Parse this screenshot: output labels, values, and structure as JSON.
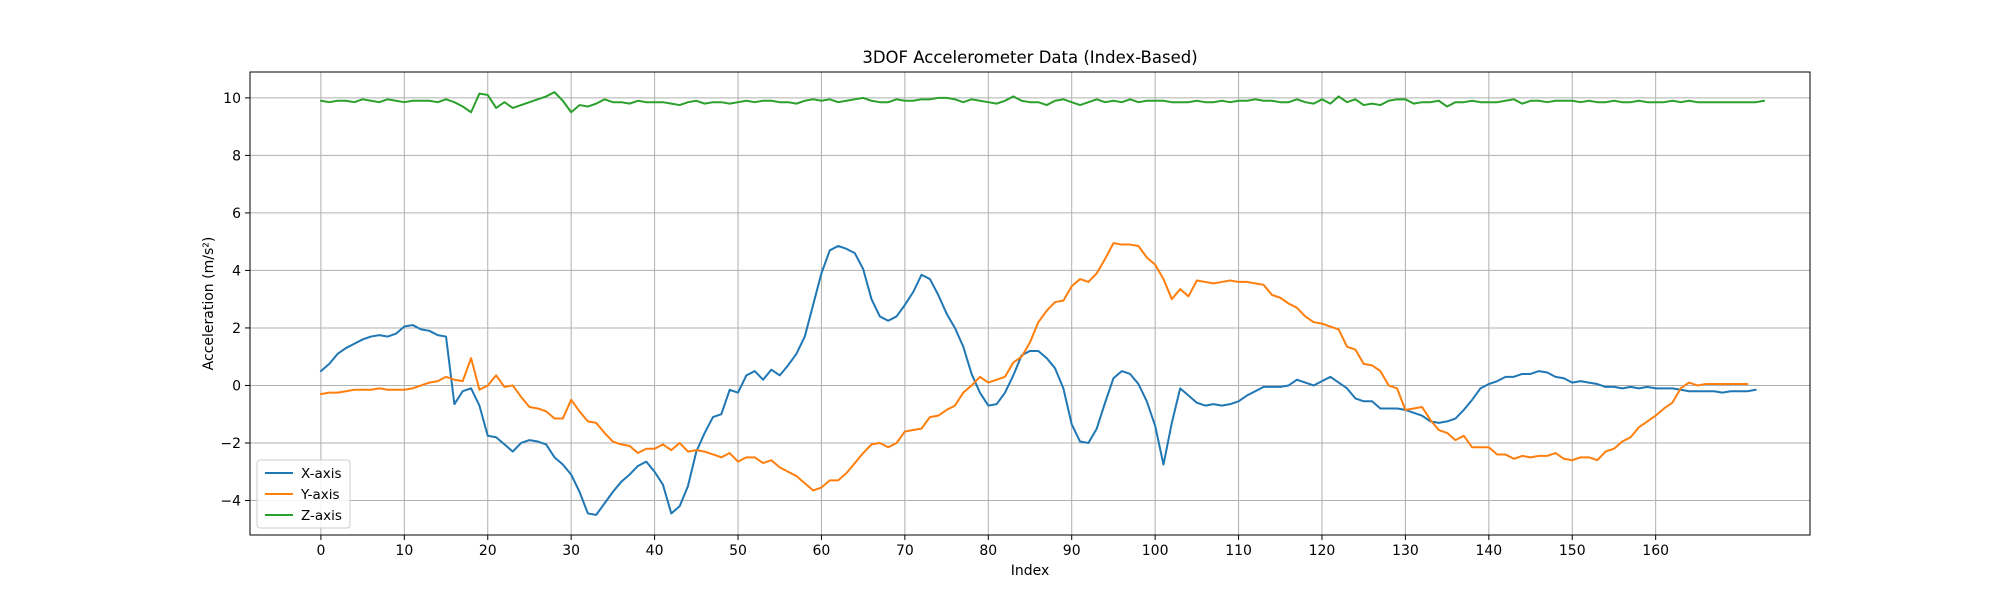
{
  "chart_data": {
    "type": "line",
    "title": "3DOF Accelerometer Data (Index-Based)",
    "xlabel": "Index",
    "ylabel": "Acceleration (m/s²)",
    "xlim": [
      -8.5,
      178.5
    ],
    "ylim": [
      -5.2,
      10.9
    ],
    "xticks": [
      0,
      10,
      20,
      30,
      40,
      50,
      60,
      70,
      80,
      90,
      100,
      110,
      120,
      130,
      140,
      150,
      160
    ],
    "yticks": [
      -4,
      -2,
      0,
      2,
      4,
      6,
      8,
      10
    ],
    "grid": true,
    "legend_position": "lower-left",
    "x_start": 0,
    "x_step": 1,
    "series": [
      {
        "name": "X-axis",
        "color": "#1f77b4",
        "values": [
          0.5,
          0.75,
          1.1,
          1.3,
          1.45,
          1.6,
          1.7,
          1.75,
          1.7,
          1.8,
          2.05,
          2.1,
          1.95,
          1.9,
          1.75,
          1.7,
          -0.65,
          -0.2,
          -0.1,
          -0.7,
          -1.75,
          -1.8,
          -2.05,
          -2.3,
          -2.0,
          -1.9,
          -1.95,
          -2.05,
          -2.5,
          -2.75,
          -3.1,
          -3.7,
          -4.45,
          -4.5,
          -4.1,
          -3.7,
          -3.35,
          -3.1,
          -2.8,
          -2.65,
          -3.0,
          -3.45,
          -4.45,
          -4.2,
          -3.5,
          -2.3,
          -1.65,
          -1.1,
          -1.0,
          -0.15,
          -0.25,
          0.35,
          0.5,
          0.2,
          0.55,
          0.35,
          0.7,
          1.1,
          1.7,
          2.8,
          3.9,
          4.7,
          4.85,
          4.75,
          4.6,
          4.05,
          3.0,
          2.4,
          2.25,
          2.4,
          2.8,
          3.25,
          3.85,
          3.7,
          3.15,
          2.5,
          2.0,
          1.35,
          0.4,
          -0.25,
          -0.7,
          -0.65,
          -0.25,
          0.35,
          1.05,
          1.2,
          1.2,
          0.95,
          0.6,
          -0.1,
          -1.35,
          -1.95,
          -2.0,
          -1.5,
          -0.6,
          0.25,
          0.5,
          0.4,
          0.05,
          -0.55,
          -1.4,
          -2.75,
          -1.3,
          -0.1,
          -0.35,
          -0.6,
          -0.7,
          -0.65,
          -0.7,
          -0.65,
          -0.55,
          -0.35,
          -0.2,
          -0.05,
          -0.05,
          -0.05,
          0.0,
          0.2,
          0.1,
          0.0,
          0.15,
          0.3,
          0.1,
          -0.1,
          -0.45,
          -0.55,
          -0.55,
          -0.8,
          -0.8,
          -0.8,
          -0.85,
          -0.95,
          -1.05,
          -1.25,
          -1.3,
          -1.25,
          -1.15,
          -0.85,
          -0.5,
          -0.1,
          0.05,
          0.15,
          0.3,
          0.3,
          0.4,
          0.4,
          0.5,
          0.45,
          0.3,
          0.25,
          0.1,
          0.15,
          0.1,
          0.05,
          -0.05,
          -0.05,
          -0.1,
          -0.05,
          -0.1,
          -0.05,
          -0.1,
          -0.1,
          -0.1,
          -0.15,
          -0.2,
          -0.2,
          -0.2,
          -0.2,
          -0.25,
          -0.2,
          -0.2,
          -0.2,
          -0.15
        ]
      },
      {
        "name": "Y-axis",
        "color": "#ff7f0e",
        "values": [
          -0.3,
          -0.25,
          -0.25,
          -0.2,
          -0.15,
          -0.15,
          -0.15,
          -0.1,
          -0.15,
          -0.15,
          -0.15,
          -0.1,
          0.0,
          0.1,
          0.15,
          0.3,
          0.2,
          0.15,
          0.95,
          -0.15,
          0.0,
          0.35,
          -0.05,
          0.0,
          -0.4,
          -0.75,
          -0.8,
          -0.9,
          -1.15,
          -1.15,
          -0.5,
          -0.9,
          -1.25,
          -1.3,
          -1.65,
          -1.95,
          -2.05,
          -2.1,
          -2.35,
          -2.2,
          -2.2,
          -2.05,
          -2.25,
          -2.0,
          -2.3,
          -2.25,
          -2.3,
          -2.4,
          -2.5,
          -2.35,
          -2.65,
          -2.5,
          -2.5,
          -2.7,
          -2.6,
          -2.85,
          -3.0,
          -3.15,
          -3.4,
          -3.65,
          -3.55,
          -3.3,
          -3.3,
          -3.05,
          -2.7,
          -2.35,
          -2.05,
          -2.0,
          -2.15,
          -2.0,
          -1.6,
          -1.55,
          -1.5,
          -1.1,
          -1.05,
          -0.85,
          -0.7,
          -0.25,
          0.0,
          0.3,
          0.1,
          0.2,
          0.3,
          0.8,
          1.0,
          1.5,
          2.2,
          2.6,
          2.9,
          2.95,
          3.45,
          3.7,
          3.6,
          3.9,
          4.4,
          4.95,
          4.9,
          4.9,
          4.85,
          4.45,
          4.2,
          3.7,
          3.0,
          3.35,
          3.1,
          3.65,
          3.6,
          3.55,
          3.6,
          3.65,
          3.6,
          3.6,
          3.55,
          3.5,
          3.15,
          3.05,
          2.85,
          2.7,
          2.4,
          2.2,
          2.15,
          2.05,
          1.95,
          1.35,
          1.25,
          0.75,
          0.7,
          0.5,
          0.0,
          -0.1,
          -0.85,
          -0.8,
          -0.75,
          -1.2,
          -1.55,
          -1.65,
          -1.9,
          -1.75,
          -2.15,
          -2.15,
          -2.15,
          -2.4,
          -2.4,
          -2.55,
          -2.45,
          -2.5,
          -2.45,
          -2.45,
          -2.35,
          -2.55,
          -2.6,
          -2.5,
          -2.5,
          -2.6,
          -2.3,
          -2.2,
          -1.95,
          -1.8,
          -1.45,
          -1.25,
          -1.05,
          -0.8,
          -0.6,
          -0.1,
          0.1,
          0.0,
          0.05,
          0.05,
          0.05,
          0.05,
          0.05,
          0.05
        ]
      },
      {
        "name": "Z-axis",
        "color": "#2ca02c",
        "values": [
          9.9,
          9.85,
          9.9,
          9.9,
          9.85,
          9.95,
          9.9,
          9.85,
          9.95,
          9.9,
          9.85,
          9.9,
          9.9,
          9.9,
          9.85,
          9.95,
          9.85,
          9.7,
          9.5,
          10.15,
          10.1,
          9.65,
          9.85,
          9.65,
          9.75,
          9.85,
          9.95,
          10.05,
          10.2,
          9.9,
          9.5,
          9.75,
          9.7,
          9.8,
          9.95,
          9.85,
          9.85,
          9.8,
          9.9,
          9.85,
          9.85,
          9.85,
          9.8,
          9.75,
          9.85,
          9.9,
          9.8,
          9.85,
          9.85,
          9.8,
          9.85,
          9.9,
          9.85,
          9.9,
          9.9,
          9.85,
          9.85,
          9.8,
          9.9,
          9.95,
          9.9,
          9.95,
          9.85,
          9.9,
          9.95,
          10.0,
          9.9,
          9.85,
          9.85,
          9.95,
          9.9,
          9.9,
          9.95,
          9.95,
          10.0,
          10.0,
          9.95,
          9.85,
          9.95,
          9.9,
          9.85,
          9.8,
          9.9,
          10.05,
          9.9,
          9.85,
          9.85,
          9.75,
          9.9,
          9.95,
          9.85,
          9.75,
          9.85,
          9.95,
          9.85,
          9.9,
          9.85,
          9.95,
          9.85,
          9.9,
          9.9,
          9.9,
          9.85,
          9.85,
          9.85,
          9.9,
          9.85,
          9.85,
          9.9,
          9.85,
          9.9,
          9.9,
          9.95,
          9.9,
          9.9,
          9.85,
          9.85,
          9.95,
          9.85,
          9.8,
          9.95,
          9.8,
          10.05,
          9.85,
          9.95,
          9.75,
          9.8,
          9.75,
          9.9,
          9.95,
          9.95,
          9.8,
          9.85,
          9.85,
          9.9,
          9.7,
          9.85,
          9.85,
          9.9,
          9.85,
          9.85,
          9.85,
          9.9,
          9.95,
          9.8,
          9.9,
          9.9,
          9.85,
          9.9,
          9.9,
          9.9,
          9.85,
          9.9,
          9.85,
          9.85,
          9.9,
          9.85,
          9.85,
          9.9,
          9.85,
          9.85,
          9.85,
          9.9,
          9.85,
          9.9,
          9.85,
          9.85,
          9.85,
          9.85,
          9.85,
          9.85,
          9.85,
          9.85,
          9.9
        ]
      }
    ]
  }
}
